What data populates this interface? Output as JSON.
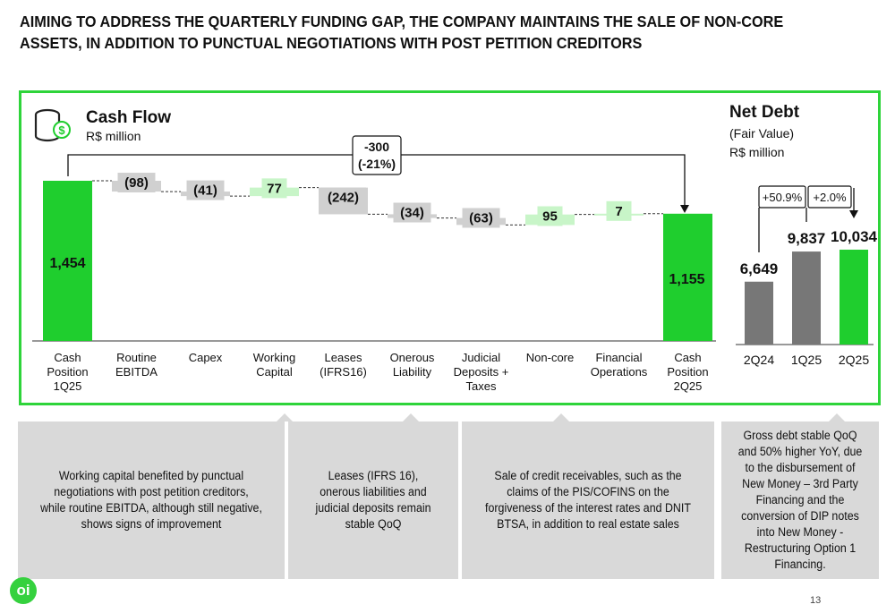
{
  "page_title": "AIMING TO ADDRESS THE QUARTERLY FUNDING GAP, THE COMPANY MAINTAINS THE SALE OF NON-CORE ASSETS, IN ADDITION TO PUNCTUAL NEGOTIATIONS WITH POST PETITION CREDITORS",
  "page_number": "13",
  "logo_text": "oi",
  "colors": {
    "green": "#1fce2e",
    "light_green": "#c8f5c8",
    "gray_bar": "#777777",
    "light_gray": "#d0d0d0",
    "frame": "#2ed43a",
    "callout_bg": "#d9d9d9"
  },
  "chart_data": [
    {
      "type": "waterfall",
      "title": "Cash Flow",
      "subtitle": "R$ million",
      "icon": "money-stack-icon",
      "categories": [
        "Cash Position 1Q25",
        "Routine EBITDA",
        "Capex",
        "Working Capital",
        "Leases (IFRS16)",
        "Onerous Liability",
        "Judicial Deposits + Taxes",
        "Non-core",
        "Financial Operations",
        "Cash Position 2Q25"
      ],
      "category_lines": [
        [
          "Cash",
          "Position",
          "1Q25"
        ],
        [
          "Routine",
          "EBITDA"
        ],
        [
          "Capex"
        ],
        [
          "Working",
          "Capital"
        ],
        [
          "Leases",
          "(IFRS16)"
        ],
        [
          "Onerous",
          "Liability"
        ],
        [
          "Judicial",
          "Deposits +",
          "Taxes"
        ],
        [
          "Non-core"
        ],
        [
          "Financial",
          "Operations"
        ],
        [
          "Cash",
          "Position",
          "2Q25"
        ]
      ],
      "values": [
        1454,
        -98,
        -41,
        77,
        -242,
        -34,
        -63,
        95,
        7,
        1155
      ],
      "value_labels": [
        "1,454",
        "(98)",
        "(41)",
        "77",
        "(242)",
        "(34)",
        "(63)",
        "95",
        "7",
        "1,155"
      ],
      "kinds": [
        "total",
        "delta",
        "delta",
        "delta",
        "delta",
        "delta",
        "delta",
        "delta",
        "delta",
        "total"
      ],
      "change_label": [
        "-300",
        "(-21%)"
      ]
    },
    {
      "type": "bar",
      "title": "Net Debt",
      "subtitle_lines": [
        "(Fair Value)",
        "R$ million"
      ],
      "categories": [
        "2Q24",
        "1Q25",
        "2Q25"
      ],
      "values": [
        6649,
        9837,
        10034
      ],
      "value_labels": [
        "6,649",
        "9,837",
        "10,034"
      ],
      "growth_labels": [
        "+50.9%",
        "+2.0%"
      ]
    }
  ],
  "callouts": [
    "Working capital benefited by punctual negotiations with post petition creditors, while routine EBITDA, although still negative, shows signs of improvement",
    "Leases (IFRS 16), onerous liabilities and judicial deposits remain stable QoQ",
    "Sale of credit receivables, such as the claims of the PIS/COFINS on the forgiveness of the interest rates and DNIT BTSA, in addition to real estate sales",
    "Gross debt stable QoQ and 50% higher YoY, due to the disbursement of New Money – 3rd Party Financing and the conversion of DIP notes into New Money - Restructuring Option 1 Financing."
  ]
}
